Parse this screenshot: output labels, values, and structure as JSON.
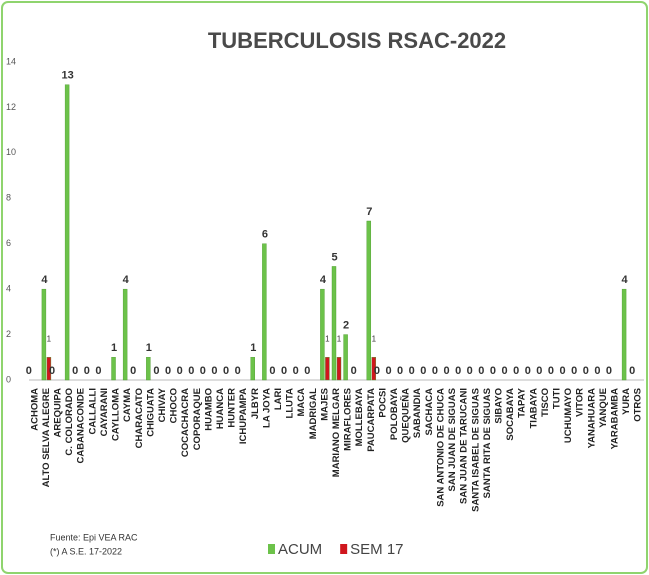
{
  "chart_data": {
    "type": "bar",
    "title": "TUBERCULOSIS RSAC-2022",
    "categories": [
      "ACHOMA",
      "ALTO SELVA ALEGRE",
      "AREQUIPA",
      "C. COLORADO",
      "CABANACONDE",
      "CALLALLI",
      "CAYARANI",
      "CAYLLOMA",
      "CAYMA",
      "CHARACATO",
      "CHIGUATA",
      "CHIVAY",
      "CHOCO",
      "COCACHACRA",
      "COPORAQUE",
      "HUAMBO",
      "HUANCA",
      "HUNTER",
      "ICHUPAMPA",
      "JLBYR",
      "LA JOYA",
      "LARI",
      "LLUTA",
      "MACA",
      "MADRIGAL",
      "MAJES",
      "MARIANO MELGAR",
      "MIRAFLORES",
      "MOLLEBAYA",
      "PAUCARPATA",
      "POCSI",
      "POLOBAYA",
      "QUEQUEÑA",
      "SABANDIA",
      "SACHACA",
      "SAN ANTONIO DE CHUCA",
      "SAN JUAN DE SIGUAS",
      "SAN JUAN DE TARUCANI",
      "SANTA ISABEL DE SIGUAS",
      "SANTA RITA DE SIGUAS",
      "SIBAYO",
      "SOCABAYA",
      "TAPAY",
      "TIABAYA",
      "TISCO",
      "TUTI",
      "UCHUMAYO",
      "VITOR",
      "YANAHUARA",
      "YANQUE",
      "YARABAMBA",
      "YURA",
      "OTROS"
    ],
    "series": [
      {
        "name": "ACUM",
        "color": "#6cc24a",
        "values": [
          0,
          4,
          0,
          13,
          0,
          0,
          0,
          1,
          4,
          0,
          1,
          0,
          0,
          0,
          0,
          0,
          0,
          0,
          0,
          1,
          6,
          0,
          0,
          0,
          0,
          4,
          5,
          2,
          0,
          7,
          0,
          0,
          0,
          0,
          0,
          0,
          0,
          0,
          0,
          0,
          0,
          0,
          0,
          0,
          0,
          0,
          0,
          0,
          0,
          0,
          0,
          4,
          0
        ]
      },
      {
        "name": "SEM 17",
        "color": "#d0161e",
        "values": [
          0,
          1,
          0,
          0,
          0,
          0,
          0,
          0,
          0,
          0,
          0,
          0,
          0,
          0,
          0,
          0,
          0,
          0,
          0,
          0,
          0,
          0,
          0,
          0,
          0,
          1,
          1,
          0,
          0,
          1,
          0,
          0,
          0,
          0,
          0,
          0,
          0,
          0,
          0,
          0,
          0,
          0,
          0,
          0,
          0,
          0,
          0,
          0,
          0,
          0,
          0,
          0,
          0
        ],
        "value_labels": [
          null,
          "1",
          null,
          null,
          null,
          null,
          null,
          null,
          null,
          null,
          null,
          null,
          null,
          null,
          null,
          null,
          null,
          null,
          null,
          null,
          null,
          null,
          null,
          null,
          null,
          "1",
          "1",
          null,
          null,
          "1",
          null,
          null,
          null,
          null,
          null,
          null,
          null,
          null,
          null,
          null,
          null,
          null,
          null,
          null,
          null,
          null,
          null,
          null,
          null,
          null,
          null,
          null,
          null
        ]
      }
    ],
    "ylim": [
      0,
      14
    ],
    "yticks": [
      0,
      2,
      4,
      6,
      8,
      10,
      12,
      14
    ],
    "legend": "bottom",
    "annotations": [
      "Fuente:  Epi VEA RAC",
      "(*) A S.E. 17-2022"
    ]
  }
}
